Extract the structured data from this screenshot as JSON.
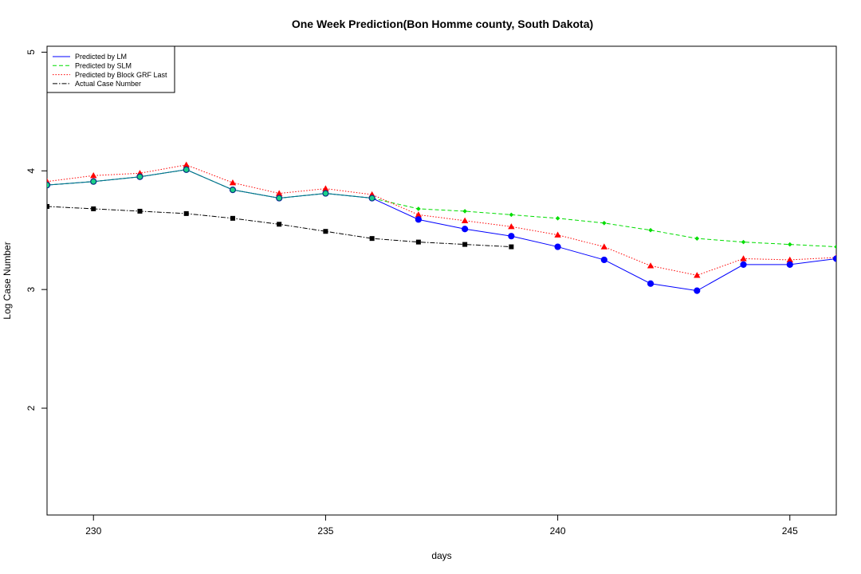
{
  "chart_data": {
    "type": "line",
    "title": "One Week Prediction(Bon Homme county, South Dakota)",
    "xlabel": "days",
    "ylabel": "Log Case Number",
    "xlim": [
      229,
      246
    ],
    "ylim": [
      1.1,
      5.05
    ],
    "x_ticks": [
      230,
      235,
      240,
      245
    ],
    "y_ticks": [
      2,
      3,
      4,
      5
    ],
    "legend_position": "top-left",
    "series": [
      {
        "name": "Predicted by LM",
        "color": "#0000ff",
        "line_style": "solid",
        "marker": "circle",
        "x": [
          229,
          230,
          231,
          232,
          233,
          234,
          235,
          236,
          237,
          238,
          239,
          240,
          241,
          242,
          243,
          244,
          245,
          246
        ],
        "y": [
          3.88,
          3.91,
          3.95,
          4.01,
          3.84,
          3.77,
          3.81,
          3.77,
          3.59,
          3.51,
          3.45,
          3.36,
          3.25,
          3.05,
          2.99,
          3.21,
          3.21,
          3.26
        ]
      },
      {
        "name": "Predicted by SLM",
        "color": "#00dd00",
        "line_style": "dashed",
        "marker": "diamond",
        "x": [
          229,
          230,
          231,
          232,
          233,
          234,
          235,
          236,
          237,
          238,
          239,
          240,
          241,
          242,
          243,
          244,
          245,
          246
        ],
        "y": [
          3.88,
          3.91,
          3.95,
          4.01,
          3.84,
          3.77,
          3.81,
          3.77,
          3.68,
          3.66,
          3.63,
          3.6,
          3.56,
          3.5,
          3.43,
          3.4,
          3.38,
          3.36
        ]
      },
      {
        "name": "Predicted by Block GRF Last",
        "color": "#ff0000",
        "line_style": "dotted",
        "marker": "triangle",
        "x": [
          229,
          230,
          231,
          232,
          233,
          234,
          235,
          236,
          237,
          238,
          239,
          240,
          241,
          242,
          243,
          244,
          245,
          246
        ],
        "y": [
          3.91,
          3.96,
          3.98,
          4.05,
          3.9,
          3.81,
          3.85,
          3.8,
          3.63,
          3.58,
          3.53,
          3.46,
          3.36,
          3.2,
          3.12,
          3.26,
          3.25,
          3.27
        ]
      },
      {
        "name": "Actual Case Number",
        "color": "#000000",
        "line_style": "dashdot",
        "marker": "square",
        "x": [
          229,
          230,
          231,
          232,
          233,
          234,
          235,
          236,
          237,
          238,
          239
        ],
        "y": [
          3.7,
          3.68,
          3.66,
          3.64,
          3.6,
          3.55,
          3.49,
          3.43,
          3.4,
          3.38,
          3.36
        ]
      }
    ]
  }
}
